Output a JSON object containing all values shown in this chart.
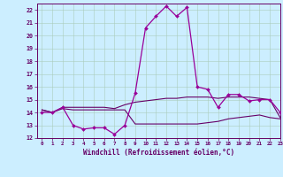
{
  "title": "",
  "xlabel": "Windchill (Refroidissement éolien,°C)",
  "hours": [
    0,
    1,
    2,
    3,
    4,
    5,
    6,
    7,
    8,
    9,
    10,
    11,
    12,
    13,
    14,
    15,
    16,
    17,
    18,
    19,
    20,
    21,
    22,
    23
  ],
  "line1": [
    14.0,
    14.0,
    14.4,
    13.0,
    12.7,
    12.8,
    12.8,
    12.3,
    13.0,
    15.5,
    20.6,
    21.5,
    22.3,
    21.5,
    22.2,
    16.0,
    15.8,
    14.4,
    15.4,
    15.4,
    14.9,
    15.0,
    15.0,
    14.0
  ],
  "line2": [
    14.2,
    14.0,
    14.4,
    14.4,
    14.4,
    14.4,
    14.4,
    14.3,
    14.6,
    14.8,
    14.9,
    15.0,
    15.1,
    15.1,
    15.2,
    15.2,
    15.2,
    15.1,
    15.2,
    15.2,
    15.2,
    15.1,
    15.0,
    13.6
  ],
  "line3": [
    14.2,
    14.0,
    14.3,
    14.2,
    14.2,
    14.2,
    14.2,
    14.2,
    14.2,
    13.1,
    13.1,
    13.1,
    13.1,
    13.1,
    13.1,
    13.1,
    13.2,
    13.3,
    13.5,
    13.6,
    13.7,
    13.8,
    13.6,
    13.5
  ],
  "line_color1": "#990099",
  "line_color2": "#660066",
  "line_color3": "#660066",
  "bg_color": "#cceeff",
  "grid_color": "#aaccbb",
  "text_color": "#660066",
  "ylim": [
    12,
    22.5
  ],
  "yticks": [
    12,
    13,
    14,
    15,
    16,
    17,
    18,
    19,
    20,
    21,
    22
  ],
  "xlim": [
    -0.5,
    23
  ],
  "xticks": [
    0,
    1,
    2,
    3,
    4,
    5,
    6,
    7,
    8,
    9,
    10,
    11,
    12,
    13,
    14,
    15,
    16,
    17,
    18,
    19,
    20,
    21,
    22,
    23
  ]
}
